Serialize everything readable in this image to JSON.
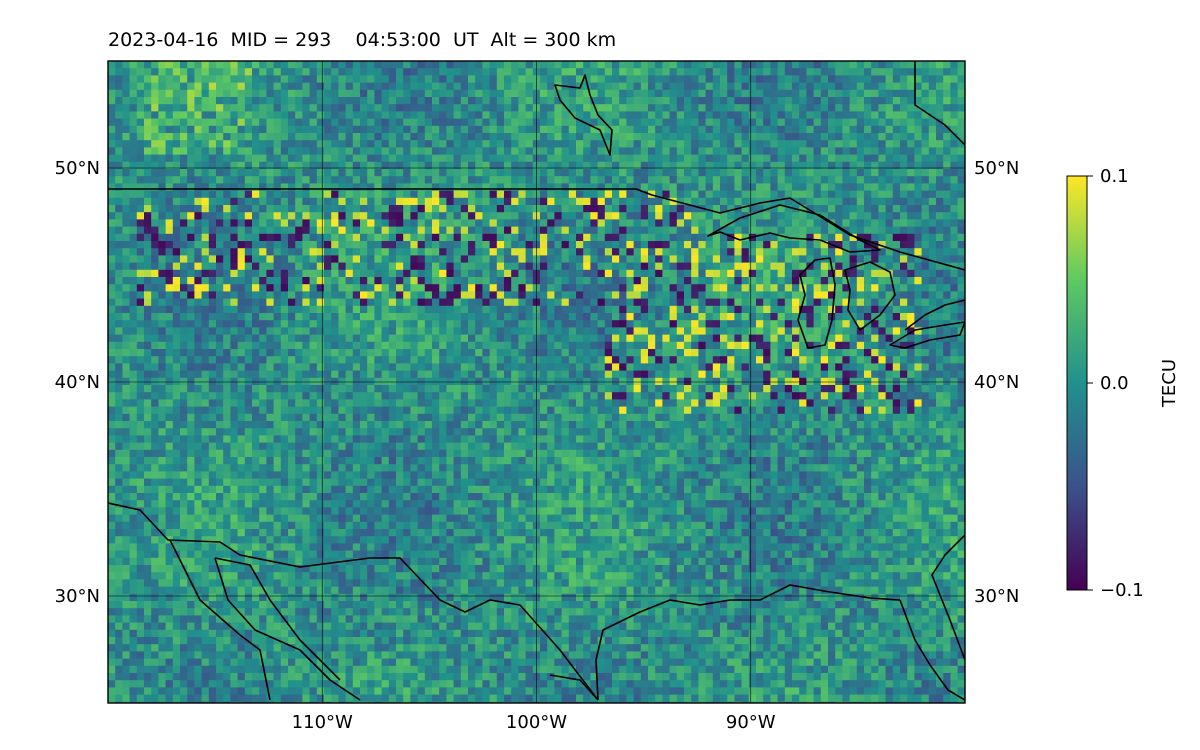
{
  "title": "2023-04-16  MID = 293    04:53:00  UT  Alt = 300 km",
  "map": {
    "lon_range": [
      -120,
      -80
    ],
    "lat_range": [
      25,
      55
    ],
    "gridlines": "on",
    "lon_ticks": [
      {
        "value": -110,
        "label": "110°W"
      },
      {
        "value": -100,
        "label": "100°W"
      },
      {
        "value": -90,
        "label": "90°W"
      }
    ],
    "lat_ticks": [
      {
        "value": 50,
        "label": "50°N"
      },
      {
        "value": 40,
        "label": "40°N"
      },
      {
        "value": 30,
        "label": "30°N"
      }
    ],
    "colormap": [
      "#440154",
      "#3b528b",
      "#21918c",
      "#5ec962",
      "#fde725"
    ],
    "colorbar": {
      "label": "TECU",
      "vmin": -0.1,
      "vmax": 0.1,
      "ticks": [
        {
          "value": 0.1,
          "label": "0.1"
        },
        {
          "value": 0.0,
          "label": "0.0"
        },
        {
          "value": -0.1,
          "label": "−0.1"
        }
      ]
    }
  }
}
